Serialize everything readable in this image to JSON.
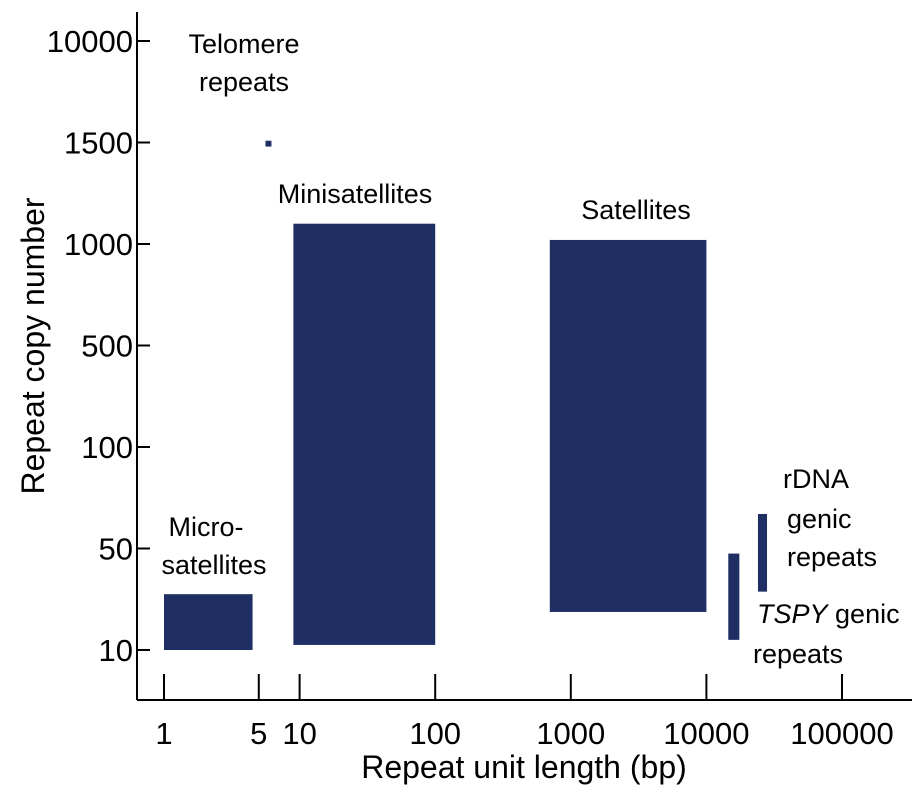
{
  "chart_data": {
    "type": "range-bar",
    "xlabel": "Repeat unit length (bp)",
    "ylabel": "Repeat copy number",
    "x_scale": "log (decades)",
    "y_scale": "non-uniform (ticks equally spaced)",
    "x_ticks": [
      {
        "value": 1,
        "label": "1"
      },
      {
        "value": 5,
        "label": "5"
      },
      {
        "value": 10,
        "label": "10"
      },
      {
        "value": 100,
        "label": "100"
      },
      {
        "value": 1000,
        "label": "1000"
      },
      {
        "value": 10000,
        "label": "10000"
      },
      {
        "value": 100000,
        "label": "100000"
      }
    ],
    "y_ticks": [
      {
        "value": 10,
        "label": "10"
      },
      {
        "value": 50,
        "label": "50"
      },
      {
        "value": 100,
        "label": "100"
      },
      {
        "value": 500,
        "label": "500"
      },
      {
        "value": 1000,
        "label": "1000"
      },
      {
        "value": 1500,
        "label": "1500"
      },
      {
        "value": 10000,
        "label": "10000"
      }
    ],
    "series": [
      {
        "name": "Telomere repeats",
        "label_lines": [
          "Telomere",
          "repeats"
        ],
        "x_range": [
          5.6,
          6.2
        ],
        "y_range": [
          1480,
          1650
        ]
      },
      {
        "name": "Minisatellites",
        "label_lines": [
          "Minisatellites"
        ],
        "x_range": [
          9,
          100
        ],
        "y_range": [
          12,
          1100
        ]
      },
      {
        "name": "Satellites",
        "label_lines": [
          "Satellites"
        ],
        "x_range": [
          700,
          10000
        ],
        "y_range": [
          25,
          1020
        ]
      },
      {
        "name": "Microsatellites",
        "label_lines": [
          "Micro-",
          "satellites"
        ],
        "x_range": [
          1,
          4.5
        ],
        "y_range": [
          10,
          32
        ]
      },
      {
        "name": "rDNA genic repeats",
        "label_lines": [
          "rDNA",
          "genic",
          "repeats"
        ],
        "x_range": [
          24000,
          28000
        ],
        "y_range": [
          33,
          67
        ]
      },
      {
        "name": "TSPY genic repeats",
        "label_lines": [
          "TSPY",
          "genic",
          "repeats"
        ],
        "x_range": [
          14500,
          17500
        ],
        "y_range": [
          14,
          48
        ]
      }
    ],
    "colors": {
      "bar": "#1f2e63",
      "axis": "#000000",
      "background": "#ffffff"
    },
    "grid": false,
    "legend": "none"
  }
}
